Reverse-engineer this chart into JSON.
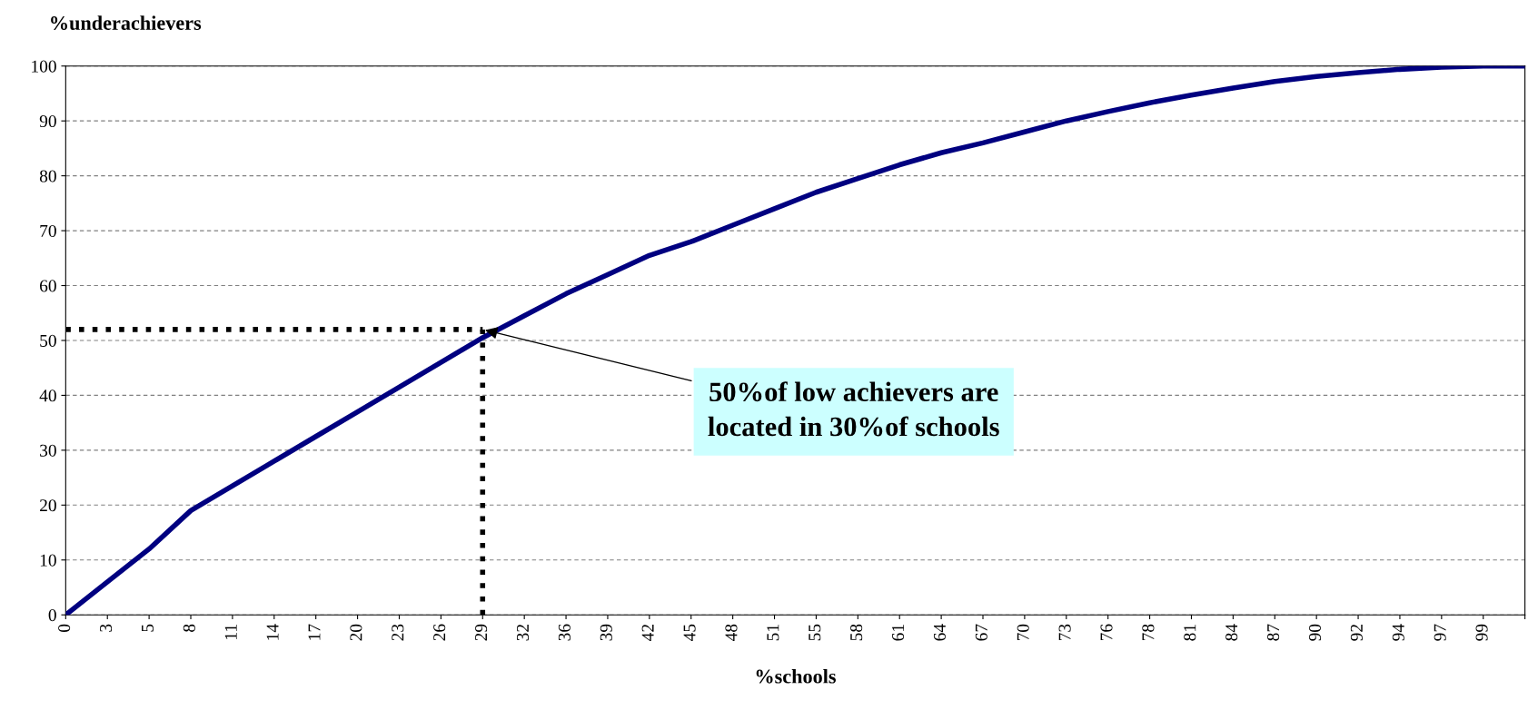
{
  "chart_data": {
    "type": "line",
    "xlabel": "%schools",
    "ylabel": "%underachievers",
    "categories": [
      "0",
      "3",
      "5",
      "8",
      "11",
      "14",
      "17",
      "20",
      "23",
      "26",
      "29",
      "32",
      "36",
      "39",
      "42",
      "45",
      "48",
      "51",
      "55",
      "58",
      "61",
      "64",
      "67",
      "70",
      "73",
      "76",
      "78",
      "81",
      "84",
      "87",
      "90",
      "92",
      "94",
      "97",
      "99",
      null
    ],
    "series": [
      {
        "color": "#000080",
        "values": [
          0,
          6,
          12,
          19,
          23.5,
          28,
          32.5,
          37,
          41.5,
          46,
          50.5,
          54.5,
          58.5,
          62,
          65.5,
          68,
          71,
          74,
          77,
          79.5,
          82,
          84.2,
          86,
          88,
          90,
          91.7,
          93.3,
          94.7,
          96,
          97.2,
          98.1,
          98.8,
          99.4,
          99.8,
          100,
          100
        ]
      }
    ],
    "ylim": [
      0,
      100
    ],
    "yticks": [
      0,
      10,
      20,
      30,
      40,
      50,
      60,
      70,
      80,
      90,
      100
    ],
    "grid": "y",
    "legend": false,
    "marker": "none",
    "line_style": "solid",
    "ref_lines": [
      {
        "axis": "y",
        "value": 52,
        "color": "#000000",
        "line_style": "dotted"
      },
      {
        "axis": "x",
        "value": "29",
        "color": "#000000",
        "line_style": "dotted"
      }
    ],
    "annotations": [
      {
        "text": "50%of low achievers are\nlocated in 30%of schools",
        "x": "29",
        "y": 52
      }
    ]
  }
}
